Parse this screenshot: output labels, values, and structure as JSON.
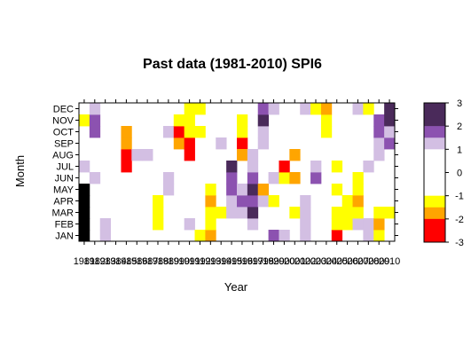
{
  "chart_data": {
    "type": "heatmap",
    "title": "Past data (1981-2010) SPI6",
    "xlabel": "Year",
    "ylabel": "Month",
    "x_categories": [
      "1981",
      "1982",
      "1983",
      "1984",
      "1985",
      "1986",
      "1987",
      "1988",
      "1989",
      "1990",
      "1991",
      "1992",
      "1993",
      "1994",
      "1995",
      "1996",
      "1997",
      "1998",
      "1999",
      "2000",
      "2001",
      "2002",
      "2003",
      "2004",
      "2005",
      "2006",
      "2007",
      "2008",
      "2009",
      "2010"
    ],
    "y_categories": [
      "JAN",
      "FEB",
      "MAR",
      "APR",
      "MAY",
      "JUN",
      "JUL",
      "AUG",
      "SEP",
      "OCT",
      "NOV",
      "DEC"
    ],
    "colorbar": {
      "ticks": [
        "3",
        "2",
        "1",
        "0",
        "-1",
        "-2",
        "-3"
      ],
      "bins": [
        {
          "range": [
            2,
            3
          ],
          "color": "#4a2a5a"
        },
        {
          "range": [
            1.5,
            2
          ],
          "color": "#8c52b0"
        },
        {
          "range": [
            1,
            1.5
          ],
          "color": "#d3bfe3"
        },
        {
          "range": [
            -1,
            1
          ],
          "color": "#ffffff"
        },
        {
          "range": [
            -1.5,
            -1
          ],
          "color": "#ffff00"
        },
        {
          "range": [
            -2,
            -1.5
          ],
          "color": "#ffa500"
        },
        {
          "range": [
            -3,
            -2
          ],
          "color": "#ff0000"
        }
      ]
    },
    "colors": {
      "darkpurple": "#4a2a5a",
      "purple": "#8c52b0",
      "lavender": "#d3bfe3",
      "yellow": "#ffff00",
      "orange": "#ffa500",
      "red": "#ff0000",
      "missing": "#000000"
    },
    "cells": [
      {
        "year": "1981",
        "month": "JAN",
        "cls": "missing"
      },
      {
        "year": "1981",
        "month": "FEB",
        "cls": "missing"
      },
      {
        "year": "1981",
        "month": "MAR",
        "cls": "missing"
      },
      {
        "year": "1981",
        "month": "APR",
        "cls": "missing"
      },
      {
        "year": "1981",
        "month": "MAY",
        "cls": "missing"
      },
      {
        "year": "1981",
        "month": "JUL",
        "cls": "lavender"
      },
      {
        "year": "1981",
        "month": "NOV",
        "cls": "yellow"
      },
      {
        "year": "1982",
        "month": "JUN",
        "cls": "lavender"
      },
      {
        "year": "1982",
        "month": "OCT",
        "cls": "purple"
      },
      {
        "year": "1982",
        "month": "NOV",
        "cls": "purple"
      },
      {
        "year": "1982",
        "month": "DEC",
        "cls": "lavender"
      },
      {
        "year": "1983",
        "month": "JAN",
        "cls": "lavender"
      },
      {
        "year": "1983",
        "month": "FEB",
        "cls": "lavender"
      },
      {
        "year": "1985",
        "month": "JUL",
        "cls": "red"
      },
      {
        "year": "1985",
        "month": "AUG",
        "cls": "red"
      },
      {
        "year": "1985",
        "month": "SEP",
        "cls": "orange"
      },
      {
        "year": "1985",
        "month": "OCT",
        "cls": "orange"
      },
      {
        "year": "1986",
        "month": "AUG",
        "cls": "lavender"
      },
      {
        "year": "1987",
        "month": "AUG",
        "cls": "lavender"
      },
      {
        "year": "1988",
        "month": "FEB",
        "cls": "yellow"
      },
      {
        "year": "1988",
        "month": "MAR",
        "cls": "yellow"
      },
      {
        "year": "1988",
        "month": "APR",
        "cls": "yellow"
      },
      {
        "year": "1989",
        "month": "MAY",
        "cls": "lavender"
      },
      {
        "year": "1989",
        "month": "JUN",
        "cls": "lavender"
      },
      {
        "year": "1989",
        "month": "OCT",
        "cls": "lavender"
      },
      {
        "year": "1990",
        "month": "SEP",
        "cls": "orange"
      },
      {
        "year": "1990",
        "month": "OCT",
        "cls": "red"
      },
      {
        "year": "1990",
        "month": "NOV",
        "cls": "yellow"
      },
      {
        "year": "1991",
        "month": "FEB",
        "cls": "lavender"
      },
      {
        "year": "1991",
        "month": "AUG",
        "cls": "red"
      },
      {
        "year": "1991",
        "month": "SEP",
        "cls": "red"
      },
      {
        "year": "1991",
        "month": "OCT",
        "cls": "yellow"
      },
      {
        "year": "1991",
        "month": "NOV",
        "cls": "yellow"
      },
      {
        "year": "1991",
        "month": "DEC",
        "cls": "yellow"
      },
      {
        "year": "1992",
        "month": "JAN",
        "cls": "yellow"
      },
      {
        "year": "1992",
        "month": "OCT",
        "cls": "yellow"
      },
      {
        "year": "1992",
        "month": "DEC",
        "cls": "yellow"
      },
      {
        "year": "1993",
        "month": "JAN",
        "cls": "orange"
      },
      {
        "year": "1993",
        "month": "FEB",
        "cls": "yellow"
      },
      {
        "year": "1993",
        "month": "MAR",
        "cls": "yellow"
      },
      {
        "year": "1993",
        "month": "APR",
        "cls": "orange"
      },
      {
        "year": "1993",
        "month": "MAY",
        "cls": "yellow"
      },
      {
        "year": "1994",
        "month": "MAR",
        "cls": "yellow"
      },
      {
        "year": "1994",
        "month": "SEP",
        "cls": "lavender"
      },
      {
        "year": "1995",
        "month": "MAR",
        "cls": "lavender"
      },
      {
        "year": "1995",
        "month": "APR",
        "cls": "lavender"
      },
      {
        "year": "1995",
        "month": "MAY",
        "cls": "purple"
      },
      {
        "year": "1995",
        "month": "JUN",
        "cls": "purple"
      },
      {
        "year": "1995",
        "month": "JUL",
        "cls": "darkpurple"
      },
      {
        "year": "1996",
        "month": "MAR",
        "cls": "lavender"
      },
      {
        "year": "1996",
        "month": "APR",
        "cls": "purple"
      },
      {
        "year": "1996",
        "month": "MAY",
        "cls": "lavender"
      },
      {
        "year": "1996",
        "month": "SEP",
        "cls": "red"
      },
      {
        "year": "1996",
        "month": "AUG",
        "cls": "orange"
      },
      {
        "year": "1996",
        "month": "NOV",
        "cls": "yellow"
      },
      {
        "year": "1996",
        "month": "OCT",
        "cls": "yellow"
      },
      {
        "year": "1997",
        "month": "FEB",
        "cls": "lavender"
      },
      {
        "year": "1997",
        "month": "MAR",
        "cls": "darkpurple"
      },
      {
        "year": "1997",
        "month": "APR",
        "cls": "purple"
      },
      {
        "year": "1997",
        "month": "MAY",
        "cls": "darkpurple"
      },
      {
        "year": "1997",
        "month": "JUN",
        "cls": "purple"
      },
      {
        "year": "1997",
        "month": "JUL",
        "cls": "lavender"
      },
      {
        "year": "1997",
        "month": "AUG",
        "cls": "lavender"
      },
      {
        "year": "1998",
        "month": "APR",
        "cls": "lavender"
      },
      {
        "year": "1998",
        "month": "MAY",
        "cls": "orange"
      },
      {
        "year": "1998",
        "month": "OCT",
        "cls": "lavender"
      },
      {
        "year": "1998",
        "month": "SEP",
        "cls": "lavender"
      },
      {
        "year": "1998",
        "month": "NOV",
        "cls": "darkpurple"
      },
      {
        "year": "1998",
        "month": "DEC",
        "cls": "purple"
      },
      {
        "year": "1999",
        "month": "JAN",
        "cls": "purple"
      },
      {
        "year": "1999",
        "month": "APR",
        "cls": "yellow"
      },
      {
        "year": "1999",
        "month": "JUN",
        "cls": "lavender"
      },
      {
        "year": "1999",
        "month": "DEC",
        "cls": "lavender"
      },
      {
        "year": "2000",
        "month": "JAN",
        "cls": "lavender"
      },
      {
        "year": "2000",
        "month": "JUN",
        "cls": "yellow"
      },
      {
        "year": "2000",
        "month": "JUL",
        "cls": "red"
      },
      {
        "year": "2001",
        "month": "MAR",
        "cls": "yellow"
      },
      {
        "year": "2001",
        "month": "JUN",
        "cls": "orange"
      },
      {
        "year": "2001",
        "month": "AUG",
        "cls": "orange"
      },
      {
        "year": "2002",
        "month": "JAN",
        "cls": "lavender"
      },
      {
        "year": "2002",
        "month": "FEB",
        "cls": "lavender"
      },
      {
        "year": "2002",
        "month": "MAR",
        "cls": "lavender"
      },
      {
        "year": "2002",
        "month": "APR",
        "cls": "lavender"
      },
      {
        "year": "2002",
        "month": "DEC",
        "cls": "lavender"
      },
      {
        "year": "2003",
        "month": "JUN",
        "cls": "purple"
      },
      {
        "year": "2003",
        "month": "JUL",
        "cls": "lavender"
      },
      {
        "year": "2003",
        "month": "DEC",
        "cls": "yellow"
      },
      {
        "year": "2004",
        "month": "OCT",
        "cls": "yellow"
      },
      {
        "year": "2004",
        "month": "NOV",
        "cls": "yellow"
      },
      {
        "year": "2004",
        "month": "DEC",
        "cls": "orange"
      },
      {
        "year": "2005",
        "month": "JAN",
        "cls": "red"
      },
      {
        "year": "2005",
        "month": "FEB",
        "cls": "yellow"
      },
      {
        "year": "2005",
        "month": "MAR",
        "cls": "yellow"
      },
      {
        "year": "2005",
        "month": "MAY",
        "cls": "yellow"
      },
      {
        "year": "2005",
        "month": "JUL",
        "cls": "yellow"
      },
      {
        "year": "2006",
        "month": "FEB",
        "cls": "yellow"
      },
      {
        "year": "2006",
        "month": "MAR",
        "cls": "yellow"
      },
      {
        "year": "2006",
        "month": "APR",
        "cls": "yellow"
      },
      {
        "year": "2007",
        "month": "FEB",
        "cls": "lavender"
      },
      {
        "year": "2007",
        "month": "MAR",
        "cls": "yellow"
      },
      {
        "year": "2007",
        "month": "APR",
        "cls": "orange"
      },
      {
        "year": "2007",
        "month": "JUN",
        "cls": "yellow"
      },
      {
        "year": "2007",
        "month": "MAY",
        "cls": "yellow"
      },
      {
        "year": "2007",
        "month": "DEC",
        "cls": "lavender"
      },
      {
        "year": "2008",
        "month": "JAN",
        "cls": "lavender"
      },
      {
        "year": "2008",
        "month": "FEB",
        "cls": "lavender"
      },
      {
        "year": "2008",
        "month": "JUL",
        "cls": "lavender"
      },
      {
        "year": "2008",
        "month": "DEC",
        "cls": "yellow"
      },
      {
        "year": "2009",
        "month": "JAN",
        "cls": "yellow"
      },
      {
        "year": "2009",
        "month": "FEB",
        "cls": "orange"
      },
      {
        "year": "2009",
        "month": "MAR",
        "cls": "yellow"
      },
      {
        "year": "2009",
        "month": "SEP",
        "cls": "lavender"
      },
      {
        "year": "2009",
        "month": "AUG",
        "cls": "lavender"
      },
      {
        "year": "2009",
        "month": "OCT",
        "cls": "purple"
      },
      {
        "year": "2009",
        "month": "NOV",
        "cls": "purple"
      },
      {
        "year": "2010",
        "month": "MAR",
        "cls": "yellow"
      },
      {
        "year": "2010",
        "month": "SEP",
        "cls": "purple"
      },
      {
        "year": "2010",
        "month": "OCT",
        "cls": "lavender"
      },
      {
        "year": "2010",
        "month": "NOV",
        "cls": "darkpurple"
      },
      {
        "year": "2010",
        "month": "DEC",
        "cls": "darkpurple"
      }
    ]
  }
}
